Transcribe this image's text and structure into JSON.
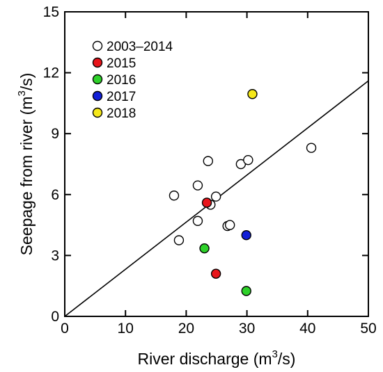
{
  "chart_data": {
    "type": "scatter",
    "title": "",
    "xlabel": "River discharge (m",
    "xlabel_sup": "3",
    "xlabel_tail": "/s)",
    "ylabel": "Seepage from river (m",
    "ylabel_sup": "3",
    "ylabel_tail": "/s)",
    "xlim": [
      0,
      50
    ],
    "ylim": [
      0,
      15
    ],
    "x_ticks": [
      0,
      10,
      20,
      30,
      40,
      50
    ],
    "y_ticks": [
      0,
      3,
      6,
      9,
      12,
      15
    ],
    "grid": false,
    "legend_position": "top-left",
    "series": [
      {
        "name": "2003–2014",
        "color": "#ffffff",
        "points": [
          {
            "x": 18.0,
            "y": 5.95
          },
          {
            "x": 18.8,
            "y": 3.75
          },
          {
            "x": 21.9,
            "y": 6.45
          },
          {
            "x": 21.9,
            "y": 4.7
          },
          {
            "x": 23.6,
            "y": 7.65
          },
          {
            "x": 24.0,
            "y": 5.5
          },
          {
            "x": 24.9,
            "y": 5.9
          },
          {
            "x": 26.8,
            "y": 4.45
          },
          {
            "x": 27.2,
            "y": 4.5
          },
          {
            "x": 29.0,
            "y": 7.5
          },
          {
            "x": 30.2,
            "y": 7.7
          },
          {
            "x": 40.6,
            "y": 8.3
          }
        ]
      },
      {
        "name": "2015",
        "color": "#e8151b",
        "points": [
          {
            "x": 23.4,
            "y": 5.6
          },
          {
            "x": 24.9,
            "y": 2.1
          }
        ]
      },
      {
        "name": "2016",
        "color": "#2ed12a",
        "points": [
          {
            "x": 23.0,
            "y": 3.35
          },
          {
            "x": 29.9,
            "y": 1.25
          }
        ]
      },
      {
        "name": "2017",
        "color": "#1220d8",
        "points": [
          {
            "x": 29.9,
            "y": 4.0
          }
        ]
      },
      {
        "name": "2018",
        "color": "#f5e81a",
        "points": [
          {
            "x": 30.9,
            "y": 10.95
          }
        ]
      }
    ],
    "fit_line": {
      "x": [
        0,
        50
      ],
      "y": [
        0,
        11.6
      ]
    }
  }
}
